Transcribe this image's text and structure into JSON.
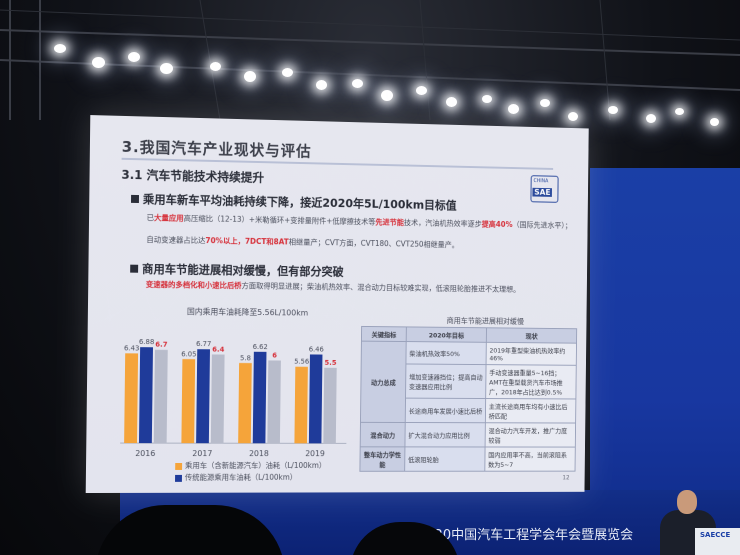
{
  "slide": {
    "title": "3.我国汽车产业现状与评估",
    "subtitle": "3.1 汽车节能技术持续提升",
    "logo_top": "CHINA",
    "logo_bottom": "SAE",
    "bullet1": "乘用车新车平均油耗持续下降，接近2020年5L/100km目标值",
    "bullet1_line1_pre": "已",
    "bullet1_line1_red": "大量应用",
    "bullet1_line1_post": "高压缩比（12-13）+米勒循环+变排量附件+低摩擦技术等",
    "bullet1_line1_red2": "先进节能",
    "bullet1_line1_post2": "技术，汽油机热效率逐步",
    "bullet1_line1_red3": "提高40%",
    "bullet1_line1_post3": "（国际先进水平）；",
    "bullet1_line2_pre": "自动变速器占比达",
    "bullet1_line2_red": "70%以上，7DCT和8AT",
    "bullet1_line2_post": "相继量产；CVT方面，CVT180、CVT250相继量产。",
    "bullet2": "商用车节能进展相对缓慢，但有部分突破",
    "bullet2_line_red": "变速器的多档化和小速比后桥",
    "bullet2_line_post": "方面取得明显进展；柴油机热效率、混合动力目标较难实现，低滚阻轮胎推进不太理想。",
    "page_number": "12"
  },
  "chart_data": {
    "type": "bar",
    "title": "国内乘用车油耗降至5.56L/100km",
    "categories": [
      "2016",
      "2017",
      "2018",
      "2019"
    ],
    "series": [
      {
        "name": "乘用车（含新能源汽车）油耗（L/100km）",
        "values": [
          6.43,
          6.05,
          5.8,
          5.56
        ],
        "color": "#f5a43a"
      },
      {
        "name": "传统能源乘用车油耗（L/100km）",
        "values": [
          6.88,
          6.77,
          6.62,
          6.46
        ],
        "color": "#1f3b9a"
      },
      {
        "name": "",
        "values": [
          6.7,
          6.4,
          6.0,
          5.5
        ],
        "color": "#b8bccb"
      }
    ],
    "value_labels": [
      [
        "6.43",
        "6.88",
        "6.7"
      ],
      [
        "6.05",
        "6.77",
        "6.4"
      ],
      [
        "5.8",
        "6.62",
        "6"
      ],
      [
        "5.56",
        "6.46",
        "5.5"
      ]
    ],
    "label_colors": [
      "#4a4e5c",
      "#4a4e5c",
      "#d6303a"
    ],
    "ylim": [
      0,
      7.5
    ]
  },
  "table": {
    "title": "商用车节能进展相对缓慢",
    "headers": [
      "关键指标",
      "2020年目标",
      "现状"
    ],
    "rows": [
      {
        "cat": "",
        "target": "柴油机热效率50%",
        "current": "2019年重型柴油机热效率约46%"
      },
      {
        "cat": "动力总成",
        "target": "增加变速器挡位；提高自动变速器应用比例",
        "current": "手动变速器重量5~16挡；AMT在重型载货汽车市场推广，2018年占比达到0.5%"
      },
      {
        "cat": "",
        "target": "长途商用车发展小速比后桥",
        "current": "主流长途商用车均有小速比后桥匹配"
      },
      {
        "cat": "混合动力",
        "target": "扩大混合动力应用比例",
        "current": "混合动力汽车开发，推广力度较弱"
      },
      {
        "cat": "整车动力学性能",
        "target": "低滚阻轮胎",
        "current": "国内应用率不高，当前滚阻系数为5~7"
      }
    ]
  },
  "banner": {
    "text": "2020中国汽车工程学会年会暨展览会"
  },
  "podium": {
    "logo": "SAECCE"
  }
}
